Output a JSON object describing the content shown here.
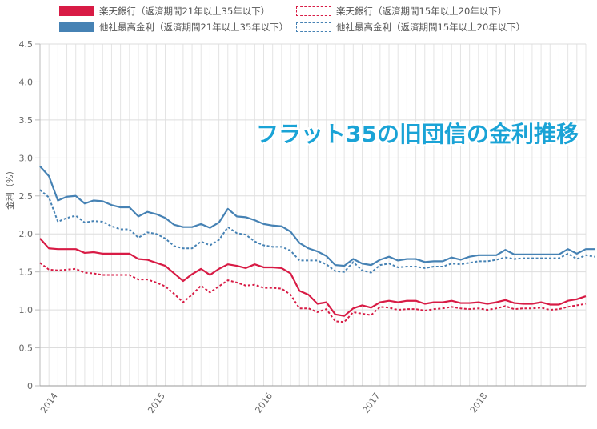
{
  "legend": {
    "items": [
      {
        "label": "楽天銀行（返済期間21年以上35年以下）",
        "color": "#d81b45",
        "style": "solid"
      },
      {
        "label": "楽天銀行（返済期間15年以上20年以下）",
        "color": "#d81b45",
        "style": "dotted"
      },
      {
        "label": "他社最高金利（返済期間21年以上35年以下）",
        "color": "#4682b4",
        "style": "solid"
      },
      {
        "label": "他社最高金利（返済期間15年以上20年以下）",
        "color": "#4682b4",
        "style": "dotted"
      }
    ]
  },
  "overlay_title": "フラット35の旧団信の金利推移",
  "chart_data": {
    "type": "line",
    "title": "",
    "xlabel": "",
    "ylabel": "金利（%）",
    "ylim": [
      0,
      4.5
    ],
    "yticks": [
      "0",
      "0.5",
      "1.0",
      "1.5",
      "2.0",
      "2.5",
      "3.0",
      "3.5",
      "4.0",
      "4.5"
    ],
    "x_tick_labels": [
      "2014",
      "2015",
      "2016",
      "2017",
      "2018"
    ],
    "grid": true,
    "legend_position": "top",
    "series": [
      {
        "name": "楽天銀行（返済期間21年以上35年以下）",
        "color": "#d81b45",
        "style": "solid",
        "values": [
          1.94,
          1.81,
          1.8,
          1.8,
          1.8,
          1.75,
          1.76,
          1.74,
          1.74,
          1.74,
          1.74,
          1.67,
          1.66,
          1.62,
          1.58,
          1.48,
          1.38,
          1.47,
          1.54,
          1.46,
          1.54,
          1.6,
          1.58,
          1.55,
          1.6,
          1.56,
          1.56,
          1.55,
          1.48,
          1.25,
          1.2,
          1.08,
          1.1,
          0.94,
          0.92,
          1.02,
          1.06,
          1.03,
          1.1,
          1.12,
          1.1,
          1.12,
          1.12,
          1.08,
          1.1,
          1.1,
          1.12,
          1.09,
          1.09,
          1.1,
          1.08,
          1.1,
          1.13,
          1.09,
          1.08,
          1.08,
          1.1,
          1.07,
          1.07,
          1.12,
          1.14,
          1.18
        ]
      },
      {
        "name": "楽天銀行（返済期間15年以上20年以下）",
        "color": "#d81b45",
        "style": "dotted",
        "values": [
          1.62,
          1.53,
          1.52,
          1.53,
          1.54,
          1.49,
          1.48,
          1.46,
          1.46,
          1.46,
          1.46,
          1.4,
          1.4,
          1.36,
          1.31,
          1.21,
          1.1,
          1.2,
          1.32,
          1.23,
          1.31,
          1.39,
          1.36,
          1.32,
          1.33,
          1.29,
          1.29,
          1.28,
          1.2,
          1.02,
          1.02,
          0.97,
          1.01,
          0.85,
          0.84,
          0.97,
          0.95,
          0.93,
          1.04,
          1.03,
          1.0,
          1.01,
          1.01,
          0.99,
          1.01,
          1.02,
          1.04,
          1.02,
          1.01,
          1.02,
          1.0,
          1.02,
          1.05,
          1.01,
          1.02,
          1.02,
          1.03,
          1.0,
          1.01,
          1.04,
          1.06,
          1.08
        ]
      },
      {
        "name": "他社最高金利（返済期間21年以上35年以下）",
        "color": "#4682b4",
        "style": "solid",
        "values": [
          2.89,
          2.76,
          2.44,
          2.49,
          2.5,
          2.4,
          2.44,
          2.43,
          2.38,
          2.35,
          2.35,
          2.23,
          2.29,
          2.26,
          2.21,
          2.12,
          2.09,
          2.09,
          2.13,
          2.08,
          2.15,
          2.33,
          2.23,
          2.22,
          2.18,
          2.13,
          2.11,
          2.1,
          2.03,
          1.88,
          1.81,
          1.77,
          1.71,
          1.59,
          1.58,
          1.67,
          1.61,
          1.59,
          1.66,
          1.7,
          1.65,
          1.67,
          1.67,
          1.63,
          1.64,
          1.64,
          1.69,
          1.66,
          1.7,
          1.72,
          1.72,
          1.72,
          1.79,
          1.73,
          1.73,
          1.73,
          1.73,
          1.73,
          1.73,
          1.8,
          1.74,
          1.8,
          1.8
        ]
      },
      {
        "name": "他社最高金利（返済期間15年以上20年以下）",
        "color": "#4682b4",
        "style": "dotted",
        "values": [
          2.58,
          2.48,
          2.16,
          2.21,
          2.24,
          2.15,
          2.17,
          2.16,
          2.1,
          2.06,
          2.06,
          1.95,
          2.02,
          2.0,
          1.94,
          1.84,
          1.81,
          1.81,
          1.9,
          1.85,
          1.92,
          2.09,
          2.01,
          1.99,
          1.9,
          1.85,
          1.83,
          1.83,
          1.78,
          1.65,
          1.65,
          1.65,
          1.6,
          1.51,
          1.5,
          1.63,
          1.52,
          1.49,
          1.59,
          1.61,
          1.56,
          1.57,
          1.57,
          1.55,
          1.57,
          1.57,
          1.61,
          1.6,
          1.62,
          1.64,
          1.64,
          1.66,
          1.69,
          1.67,
          1.68,
          1.68,
          1.68,
          1.68,
          1.68,
          1.74,
          1.67,
          1.72,
          1.7
        ]
      }
    ]
  }
}
